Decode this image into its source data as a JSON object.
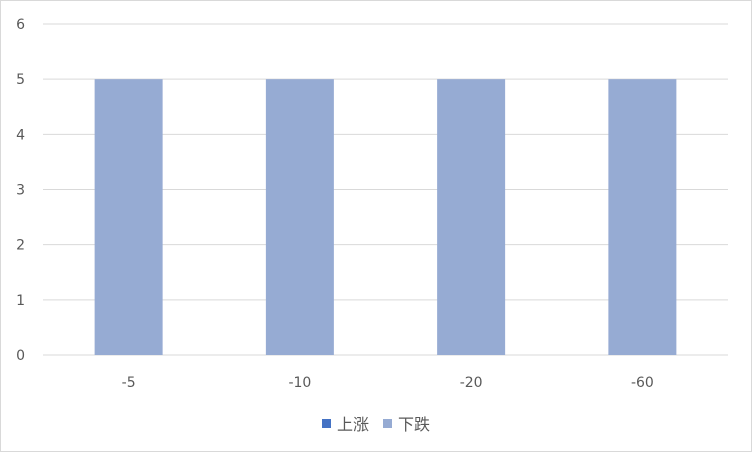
{
  "chart_data": {
    "type": "bar",
    "categories": [
      "-5",
      "-10",
      "-20",
      "-60"
    ],
    "series": [
      {
        "name": "上涨",
        "values": [
          0,
          0,
          0,
          0
        ],
        "color": "#4472c4"
      },
      {
        "name": "下跌",
        "values": [
          5,
          5,
          5,
          5
        ],
        "color": "#96abd3"
      }
    ],
    "yticks": [
      "0",
      "1",
      "2",
      "3",
      "4",
      "5",
      "6"
    ],
    "ylim": [
      0,
      6
    ],
    "grid": true,
    "legend_position": "bottom",
    "gridline_color": "#d9d9d9"
  }
}
